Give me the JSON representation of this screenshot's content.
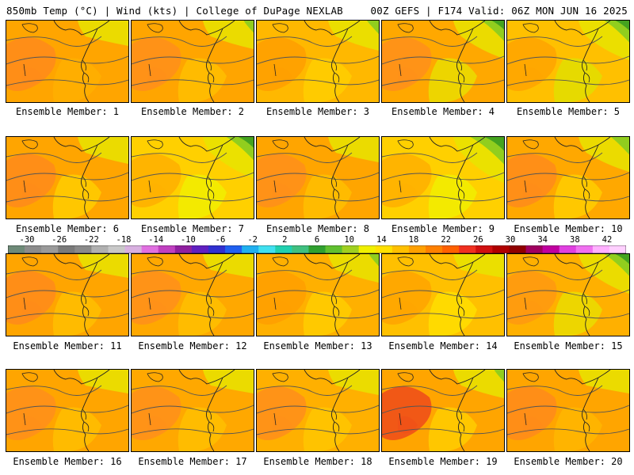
{
  "header": {
    "left": "850mb Temp (°C) | Wind (kts) | College of DuPage NEXLAB",
    "right": "00Z GEFS | F174 Valid: 06Z MON JUN 16 2025"
  },
  "colorbar": {
    "labels": [
      "-30",
      "-26",
      "-22",
      "-18",
      "-14",
      "-10",
      "-6",
      "-2",
      "2",
      "6",
      "10",
      "14",
      "18",
      "22",
      "26",
      "30",
      "34",
      "38",
      "42"
    ],
    "colors": [
      "#6e8a78",
      "#8c8c8c",
      "#9a9a9a",
      "#7a7a7a",
      "#8a8a8a",
      "#b0b0b0",
      "#c8c8c8",
      "#d8b0e0",
      "#e070e0",
      "#c040c0",
      "#9020a0",
      "#6020c0",
      "#3030d0",
      "#2060f0",
      "#20b0f0",
      "#40e0f0",
      "#20d0b0",
      "#40c080",
      "#30a030",
      "#60c030",
      "#a0d020",
      "#f0f000",
      "#ffe000",
      "#ffc000",
      "#ffa000",
      "#ff8000",
      "#ff6000",
      "#f03020",
      "#d01010",
      "#b00000",
      "#900000",
      "#a00060",
      "#c000a0",
      "#e040e0",
      "#f070f0",
      "#ffb0ff",
      "#ffd0ff"
    ]
  },
  "panels": [
    {
      "label": "Ensemble Member: 1",
      "base": "#ffa500",
      "patch1": "#ff8c1a",
      "patch2": "#ffb000",
      "green": 0.05
    },
    {
      "label": "Ensemble Member: 2",
      "base": "#ffa500",
      "patch1": "#ff901a",
      "patch2": "#ffc000",
      "green": 0.15
    },
    {
      "label": "Ensemble Member: 3",
      "base": "#ffb800",
      "patch1": "#ffa000",
      "patch2": "#ffd000",
      "green": 0.2
    },
    {
      "label": "Ensemble Member: 4",
      "base": "#ffa800",
      "patch1": "#ff901a",
      "patch2": "#e8e000",
      "green": 0.45
    },
    {
      "label": "Ensemble Member: 5",
      "base": "#ffc000",
      "patch1": "#ffa500",
      "patch2": "#e0e000",
      "green": 0.5
    },
    {
      "label": "Ensemble Member: 6",
      "base": "#ffa500",
      "patch1": "#ff8c1a",
      "patch2": "#ffd000",
      "green": 0.1
    },
    {
      "label": "Ensemble Member: 7",
      "base": "#ffd000",
      "patch1": "#ffb000",
      "patch2": "#f0f000",
      "green": 0.55
    },
    {
      "label": "Ensemble Member: 8",
      "base": "#ffa500",
      "patch1": "#ff901a",
      "patch2": "#ffc000",
      "green": 0.05
    },
    {
      "label": "Ensemble Member: 9",
      "base": "#ffd000",
      "patch1": "#ffb000",
      "patch2": "#f0f000",
      "green": 0.7
    },
    {
      "label": "Ensemble Member: 10",
      "base": "#ffa800",
      "patch1": "#ff8c1a",
      "patch2": "#ffd000",
      "green": 0.35
    },
    {
      "label": "Ensemble Member: 11",
      "base": "#ffa500",
      "patch1": "#ff8c1a",
      "patch2": "#ffc000",
      "green": 0.0
    },
    {
      "label": "Ensemble Member: 12",
      "base": "#ffa800",
      "patch1": "#ff901a",
      "patch2": "#ffc000",
      "green": 0.0
    },
    {
      "label": "Ensemble Member: 13",
      "base": "#ffb000",
      "patch1": "#ffa000",
      "patch2": "#ffd000",
      "green": 0.15
    },
    {
      "label": "Ensemble Member: 14",
      "base": "#ffc000",
      "patch1": "#ffa500",
      "patch2": "#ffe000",
      "green": 0.0
    },
    {
      "label": "Ensemble Member: 15",
      "base": "#ffb000",
      "patch1": "#ff9a10",
      "patch2": "#e8e000",
      "green": 0.5
    },
    {
      "label": "Ensemble Member: 16",
      "base": "#ffa500",
      "patch1": "#ff901a",
      "patch2": "#ffc000",
      "green": 0.0
    },
    {
      "label": "Ensemble Member: 17",
      "base": "#ffa800",
      "patch1": "#ff901a",
      "patch2": "#ffc000",
      "green": 0.0
    },
    {
      "label": "Ensemble Member: 18",
      "base": "#ffb000",
      "patch1": "#ff901a",
      "patch2": "#ffc800",
      "green": 0.05
    },
    {
      "label": "Ensemble Member: 19",
      "base": "#ffa500",
      "patch1": "#f05018",
      "patch2": "#ffd000",
      "green": 0.15
    },
    {
      "label": "Ensemble Member: 20",
      "base": "#ffa500",
      "patch1": "#ff8c1a",
      "patch2": "#ffb800",
      "green": 0.0
    }
  ]
}
